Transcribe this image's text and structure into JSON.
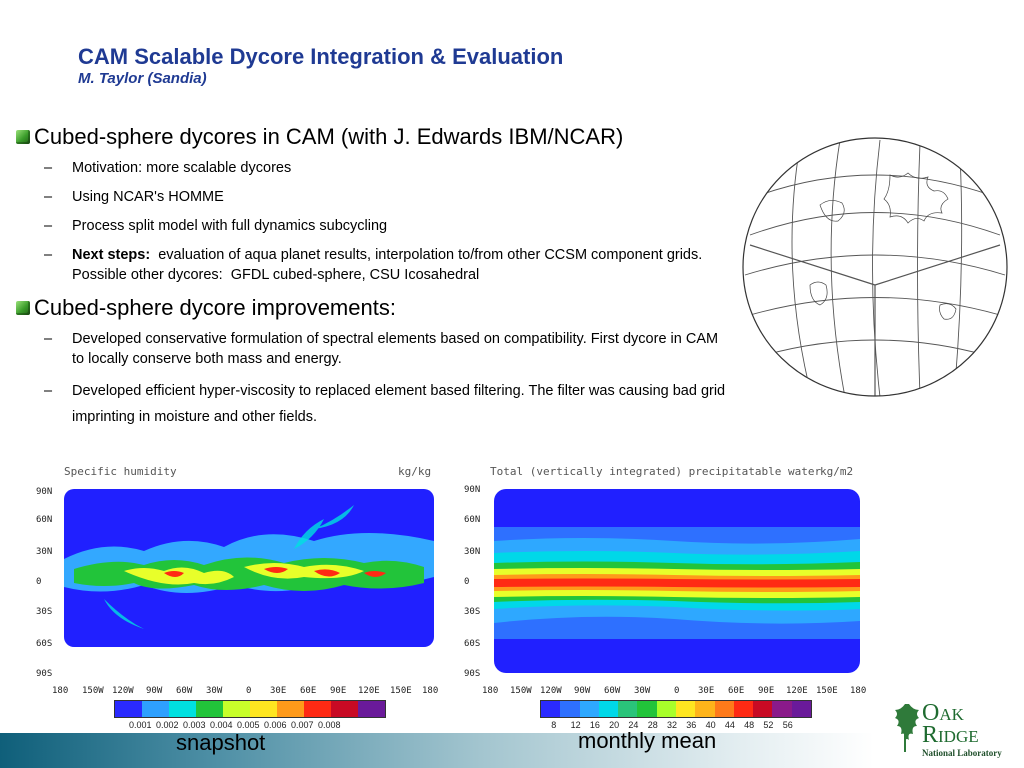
{
  "slide": {
    "title": "CAM Scalable Dycore Integration & Evaluation",
    "subtitle": "M. Taylor (Sandia)"
  },
  "bullets": [
    {
      "text": "Cubed-sphere dycores in CAM (with J. Edwards IBM/NCAR)",
      "subs": [
        {
          "prefix": "",
          "text": "Motivation: more scalable dycores"
        },
        {
          "prefix": "",
          "text": "Using NCAR's HOMME"
        },
        {
          "prefix": "",
          "text": "Process split model with full dynamics subcycling"
        },
        {
          "prefix": "Next steps:",
          "text": "  evaluation of aqua planet results, interpolation to/from other CCSM component grids.  Possible other dycores:  GFDL cubed-sphere, CSU Icosahedral"
        }
      ]
    },
    {
      "text": "Cubed-sphere dycore improvements:",
      "subs": [
        {
          "prefix": "",
          "text": "Developed conservative formulation of spectral elements based on compatibility.  First dycore in CAM to locally conserve both mass and energy."
        },
        {
          "prefix": "",
          "text": "Developed efficient hyper-viscosity to replaced element based filtering.  The filter was causing bad grid imprinting in moisture and other fields."
        }
      ]
    }
  ],
  "maps": {
    "left": {
      "title": "Specific humidity",
      "units": "kg/kg",
      "caption": "snapshot",
      "lat_labels": [
        "90N",
        "60N",
        "30N",
        "0",
        "30S",
        "60S",
        "90S"
      ],
      "lon_labels": [
        "180",
        "150W",
        "120W",
        "90W",
        "60W",
        "30W",
        "0",
        "30E",
        "60E",
        "90E",
        "120E",
        "150E",
        "180"
      ],
      "colorbar_labels": [
        "0.001",
        "0.002",
        "0.003",
        "0.004",
        "0.005",
        "0.006",
        "0.007",
        "0.008"
      ],
      "colorbar_colors": [
        "#2a2aff",
        "#2ea0ff",
        "#00e0e0",
        "#22c43a",
        "#c8ff2a",
        "#ffe620",
        "#ff9a1a",
        "#ff2a14",
        "#c80a24",
        "#6a1a9a"
      ]
    },
    "right": {
      "title": "Total (vertically integrated) precipitatable water",
      "units": "kg/m2",
      "caption": "monthly mean",
      "lat_labels": [
        "90N",
        "60N",
        "30N",
        "0",
        "30S",
        "60S",
        "90S"
      ],
      "lon_labels": [
        "180",
        "150W",
        "120W",
        "90W",
        "60W",
        "30W",
        "0",
        "30E",
        "60E",
        "90E",
        "120E",
        "150E",
        "180"
      ],
      "colorbar_labels": [
        "8",
        "12",
        "16",
        "20",
        "24",
        "28",
        "32",
        "36",
        "40",
        "44",
        "48",
        "52",
        "56"
      ],
      "colorbar_colors": [
        "#2a2aff",
        "#2e70ff",
        "#2ea8ff",
        "#00d8e8",
        "#2ac47a",
        "#22c43a",
        "#a8ff2a",
        "#ffe620",
        "#ffb41a",
        "#ff7a1a",
        "#ff2a14",
        "#c80a24",
        "#8a1a8a",
        "#6a1a9a"
      ]
    }
  },
  "logo": {
    "name_line1": "Oak",
    "name_line2": "Ridge",
    "lab": "National Laboratory"
  }
}
